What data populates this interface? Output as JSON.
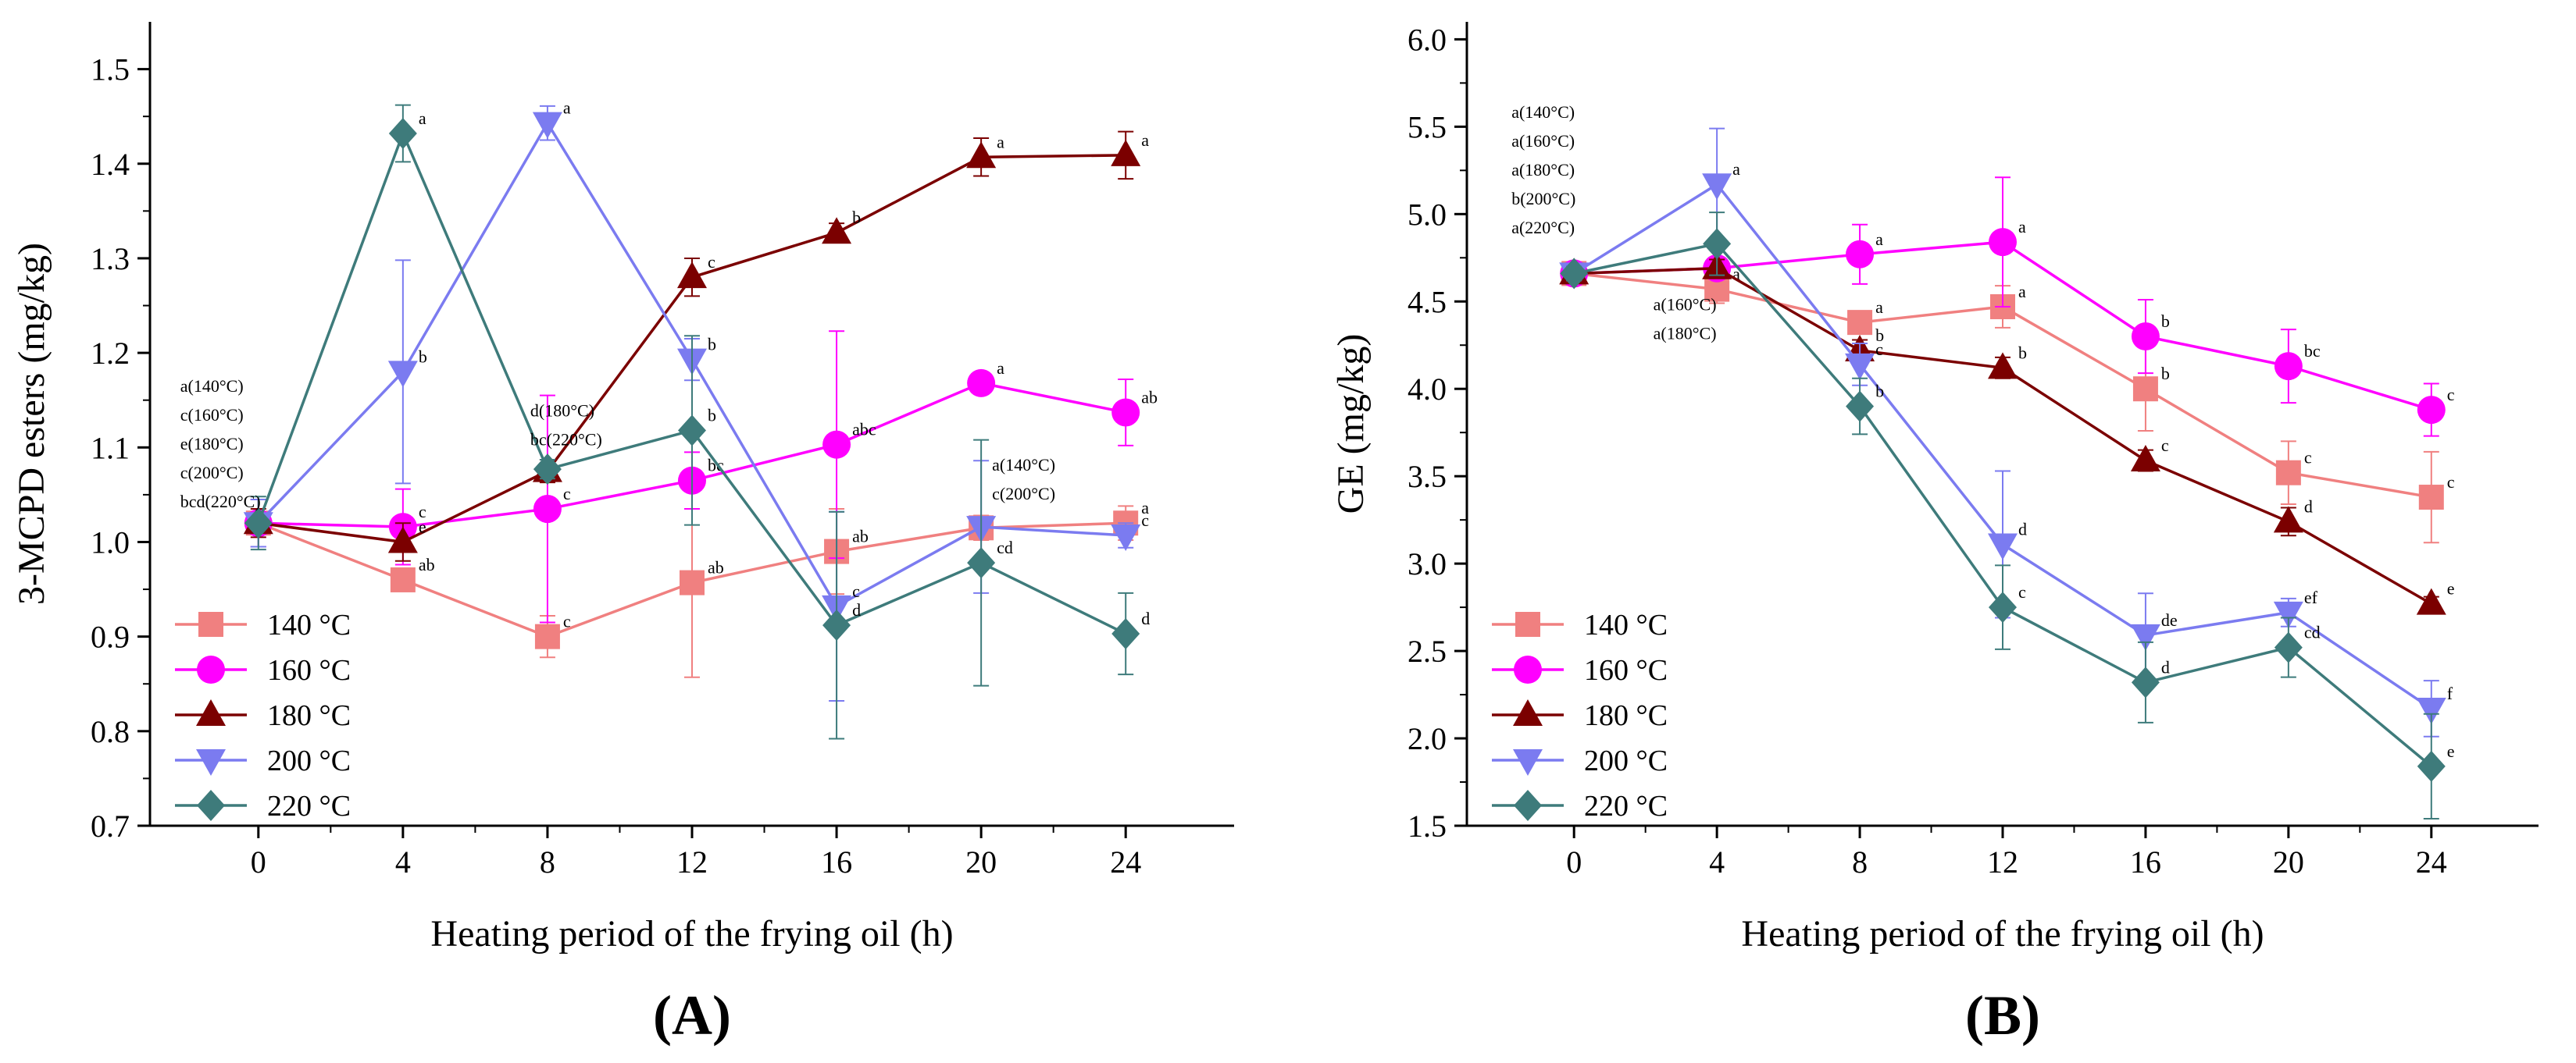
{
  "chart_data": [
    {
      "type": "line",
      "panel_label": "(A)",
      "xlabel": "Heating period  of  the frying oil (h)",
      "ylabel": "3-MCPD esters (mg/kg)",
      "x": [
        0,
        4,
        8,
        12,
        16,
        20,
        24
      ],
      "xticks": [
        "0",
        "4",
        "8",
        "12",
        "16",
        "20",
        "24"
      ],
      "xlim": [
        -3,
        27
      ],
      "ylim": [
        0.7,
        1.55
      ],
      "yticks": [
        "0.7",
        "0.8",
        "0.9",
        "1.0",
        "1.1",
        "1.2",
        "1.3",
        "1.4",
        "1.5"
      ],
      "ytick_values": [
        0.7,
        0.8,
        0.9,
        1.0,
        1.1,
        1.2,
        1.3,
        1.4,
        1.5
      ],
      "legend_position": "bottom-left",
      "series": [
        {
          "name": "140 °C",
          "color": "#f08080",
          "marker": "square",
          "values": [
            1.02,
            0.96,
            0.9,
            0.957,
            0.99,
            1.015,
            1.02
          ],
          "errors": [
            0.025,
            0.012,
            0.022,
            0.1,
            0.045,
            0.013,
            0.018
          ],
          "labels": [
            "",
            "ab",
            "c",
            "ab",
            "ab",
            "",
            "a"
          ]
        },
        {
          "name": "160 °C",
          "color": "#ff00ff",
          "marker": "circle",
          "values": [
            1.02,
            1.016,
            1.035,
            1.065,
            1.103,
            1.168,
            1.137
          ],
          "errors": [
            0.025,
            0.04,
            0.12,
            0.03,
            0.12,
            0.006,
            0.035
          ],
          "labels": [
            "",
            "c",
            "c",
            "bc",
            "abc",
            "a",
            "ab"
          ]
        },
        {
          "name": "180 °C",
          "color": "#7b0000",
          "marker": "triangle-up",
          "values": [
            1.02,
            1.0,
            1.075,
            1.28,
            1.327,
            1.407,
            1.409
          ],
          "errors": [
            0.015,
            0.02,
            0.012,
            0.02,
            0.01,
            0.02,
            0.025
          ],
          "labels": [
            "",
            "e",
            "",
            "c",
            "b",
            "a",
            "a"
          ]
        },
        {
          "name": "200 °C",
          "color": "#7b7bf0",
          "marker": "triangle-down",
          "values": [
            1.02,
            1.18,
            1.443,
            1.193,
            0.932,
            1.016,
            1.007
          ],
          "errors": [
            0.025,
            0.118,
            0.018,
            0.022,
            0.1,
            0.07,
            0.013
          ],
          "labels": [
            "",
            "b",
            "a",
            "b",
            "c",
            "",
            "c"
          ]
        },
        {
          "name": "220 °C",
          "color": "#3e7b7b",
          "marker": "diamond",
          "values": [
            1.02,
            1.432,
            1.077,
            1.118,
            0.912,
            0.978,
            0.903
          ],
          "errors": [
            0.028,
            0.03,
            0.01,
            0.1,
            0.12,
            0.13,
            0.043
          ],
          "labels": [
            "",
            "a",
            "",
            "b",
            "d",
            "cd",
            "d"
          ]
        }
      ],
      "annotations": [
        {
          "at": [
            0,
            1.02
          ],
          "lines": [
            "a(140°C)",
            "c(160°C)",
            "e(180°C)",
            "c(200°C)",
            "bcd(220°C)"
          ]
        },
        {
          "at": [
            8,
            1.075
          ],
          "lines": [
            "d(180°C)",
            "bc(220°C)"
          ]
        },
        {
          "at": [
            20,
            1.016
          ],
          "lines": [
            "a(140°C)",
            "c(200°C)"
          ]
        }
      ]
    },
    {
      "type": "line",
      "panel_label": "(B)",
      "xlabel": "Heating period  of  the frying oil (h)",
      "ylabel": "GE (mg/kg)",
      "x": [
        0,
        4,
        8,
        12,
        16,
        20,
        24
      ],
      "xticks": [
        "0",
        "4",
        "8",
        "12",
        "16",
        "20",
        "24"
      ],
      "xlim": [
        -3,
        27
      ],
      "ylim": [
        1.5,
        6.1
      ],
      "yticks": [
        "1.5",
        "2.0",
        "2.5",
        "3.0",
        "3.5",
        "4.0",
        "4.5",
        "5.0",
        "5.5",
        "6.0"
      ],
      "ytick_values": [
        1.5,
        2.0,
        2.5,
        3.0,
        3.5,
        4.0,
        4.5,
        5.0,
        5.5,
        6.0
      ],
      "legend_position": "bottom-left",
      "series": [
        {
          "name": "140 °C",
          "color": "#f08080",
          "marker": "square",
          "values": [
            4.66,
            4.57,
            4.38,
            4.47,
            4.0,
            3.52,
            3.38
          ],
          "errors": [
            0.04,
            0.08,
            0.06,
            0.12,
            0.24,
            0.18,
            0.26
          ],
          "labels": [
            "",
            "a",
            "a",
            "a",
            "b",
            "c",
            "c"
          ]
        },
        {
          "name": "160 °C",
          "color": "#ff00ff",
          "marker": "circle",
          "values": [
            4.66,
            4.69,
            4.77,
            4.84,
            4.3,
            4.13,
            3.88
          ],
          "errors": [
            0.04,
            0.05,
            0.17,
            0.37,
            0.21,
            0.21,
            0.15
          ],
          "labels": [
            "",
            "",
            "a",
            "a",
            "b",
            "bc",
            "c"
          ]
        },
        {
          "name": "180 °C",
          "color": "#7b0000",
          "marker": "triangle-up",
          "values": [
            4.66,
            4.69,
            4.22,
            4.12,
            3.59,
            3.24,
            2.77
          ],
          "errors": [
            0.04,
            0.05,
            0.06,
            0.06,
            0.06,
            0.08,
            0.04
          ],
          "labels": [
            "",
            "",
            "b",
            "b",
            "c",
            "d",
            "e"
          ]
        },
        {
          "name": "200 °C",
          "color": "#7b7bf0",
          "marker": "triangle-down",
          "values": [
            4.66,
            5.17,
            4.14,
            3.11,
            2.59,
            2.72,
            2.17
          ],
          "errors": [
            0.04,
            0.32,
            0.12,
            0.42,
            0.24,
            0.08,
            0.16
          ],
          "labels": [
            "",
            "a",
            "c",
            "d",
            "de",
            "ef",
            "f"
          ]
        },
        {
          "name": "220 °C",
          "color": "#3e7b7b",
          "marker": "diamond",
          "values": [
            4.66,
            4.83,
            3.9,
            2.75,
            2.32,
            2.52,
            1.84
          ],
          "errors": [
            0.04,
            0.18,
            0.16,
            0.24,
            0.23,
            0.17,
            0.3
          ],
          "labels": [
            "",
            "",
            "b",
            "c",
            "d",
            "cd",
            "e"
          ]
        }
      ],
      "annotations": [
        {
          "at": [
            0,
            5.55
          ],
          "lines": [
            "a(140°C)",
            "a(160°C)",
            "a(180°C)",
            "b(200°C)",
            "a(220°C)"
          ]
        },
        {
          "at": [
            2,
            4.45
          ],
          "lines": [
            "a(160°C)",
            "a(180°C)"
          ]
        }
      ]
    }
  ]
}
